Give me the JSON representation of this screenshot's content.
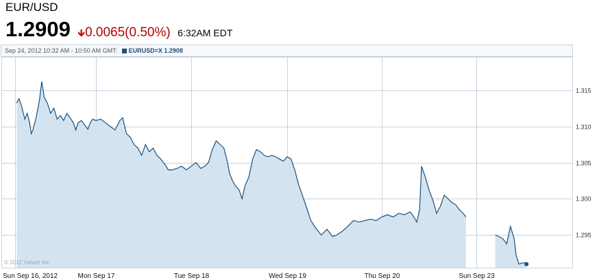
{
  "quote": {
    "symbol": "EUR/USD",
    "price": "1.2909",
    "arrow_icon": "down-arrow-icon",
    "change": "0.0065(0.50%)",
    "time": "6:32AM EDT"
  },
  "chart_header": {
    "range": "Sep 24, 2012 10:32 AM - 10:50 AM GMT:",
    "legend": "EURUSD=X 1.2908"
  },
  "copyright": "© 2012 Yahoo! Inc.",
  "colors": {
    "line": "#1f4e79",
    "fill": "#d3e4f0",
    "grid": "#c6d2de",
    "down": "#cc0000"
  },
  "chart_data": {
    "type": "area",
    "title": "",
    "xlabel": "",
    "ylabel": "",
    "ylim": [
      1.2905,
      1.3195
    ],
    "y_ticks": [
      1.295,
      1.3,
      1.305,
      1.31,
      1.315
    ],
    "y_tick_labels": [
      "1.295",
      "1.300",
      "1.305",
      "1.310",
      "1.315"
    ],
    "x_ticks": [
      0,
      1,
      2,
      3,
      4,
      5
    ],
    "x_tick_labels": [
      "Sun Sep 16, 2012",
      "Mon Sep 17",
      "Tue Sep 18",
      "Wed Sep 19",
      "Thu Sep 20",
      "Sun Sep 23"
    ],
    "grid": true,
    "legend": "top-left",
    "series": [
      {
        "name": "EURUSD=X",
        "segments": [
          [
            [
              0.02,
              1.3132
            ],
            [
              0.05,
              1.3138
            ],
            [
              0.08,
              1.3128
            ],
            [
              0.12,
              1.311
            ],
            [
              0.15,
              1.3118
            ],
            [
              0.18,
              1.3105
            ],
            [
              0.2,
              1.309
            ],
            [
              0.22,
              1.3095
            ],
            [
              0.26,
              1.3112
            ],
            [
              0.3,
              1.3135
            ],
            [
              0.33,
              1.3162
            ],
            [
              0.36,
              1.314
            ],
            [
              0.4,
              1.3132
            ],
            [
              0.44,
              1.3118
            ],
            [
              0.48,
              1.3125
            ],
            [
              0.52,
              1.311
            ],
            [
              0.56,
              1.3115
            ],
            [
              0.6,
              1.3108
            ],
            [
              0.64,
              1.3118
            ],
            [
              0.68,
              1.3112
            ],
            [
              0.72,
              1.3105
            ],
            [
              0.75,
              1.3095
            ],
            [
              0.78,
              1.3105
            ],
            [
              0.82,
              1.3108
            ],
            [
              0.86,
              1.3102
            ],
            [
              0.9,
              1.3096
            ],
            [
              0.93,
              1.3105
            ],
            [
              0.96,
              1.311
            ],
            [
              1.0,
              1.3108
            ],
            [
              1.05,
              1.311
            ],
            [
              1.1,
              1.3105
            ],
            [
              1.15,
              1.31
            ],
            [
              1.2,
              1.3095
            ],
            [
              1.25,
              1.3108
            ],
            [
              1.28,
              1.3112
            ],
            [
              1.32,
              1.309
            ],
            [
              1.36,
              1.3085
            ],
            [
              1.4,
              1.3075
            ],
            [
              1.44,
              1.307
            ],
            [
              1.48,
              1.306
            ],
            [
              1.52,
              1.3075
            ],
            [
              1.56,
              1.3065
            ],
            [
              1.6,
              1.307
            ],
            [
              1.64,
              1.306
            ],
            [
              1.68,
              1.3055
            ],
            [
              1.72,
              1.3048
            ],
            [
              1.76,
              1.304
            ],
            [
              1.8,
              1.304
            ],
            [
              1.85,
              1.3042
            ],
            [
              1.9,
              1.3045
            ],
            [
              1.95,
              1.304
            ],
            [
              2.0,
              1.3045
            ],
            [
              2.05,
              1.305
            ],
            [
              2.1,
              1.3042
            ],
            [
              2.14,
              1.3045
            ],
            [
              2.18,
              1.305
            ],
            [
              2.22,
              1.3068
            ],
            [
              2.26,
              1.308
            ],
            [
              2.3,
              1.3075
            ],
            [
              2.34,
              1.307
            ],
            [
              2.37,
              1.3055
            ],
            [
              2.4,
              1.3035
            ],
            [
              2.43,
              1.3025
            ],
            [
              2.46,
              1.3018
            ],
            [
              2.5,
              1.3012
            ],
            [
              2.53,
              1.3
            ],
            [
              2.56,
              1.3018
            ],
            [
              2.6,
              1.303
            ],
            [
              2.64,
              1.3055
            ],
            [
              2.68,
              1.3068
            ],
            [
              2.72,
              1.3065
            ],
            [
              2.76,
              1.306
            ],
            [
              2.8,
              1.3058
            ],
            [
              2.84,
              1.306
            ],
            [
              2.88,
              1.3058
            ],
            [
              2.92,
              1.3055
            ],
            [
              2.96,
              1.3052
            ],
            [
              3.0,
              1.3058
            ],
            [
              3.04,
              1.3055
            ],
            [
              3.08,
              1.304
            ],
            [
              3.12,
              1.302
            ],
            [
              3.16,
              1.3005
            ],
            [
              3.2,
              1.299
            ],
            [
              3.25,
              1.297
            ],
            [
              3.3,
              1.296
            ],
            [
              3.36,
              1.295
            ],
            [
              3.42,
              1.2958
            ],
            [
              3.48,
              1.2948
            ],
            [
              3.52,
              1.295
            ],
            [
              3.58,
              1.2955
            ],
            [
              3.64,
              1.2962
            ],
            [
              3.7,
              1.297
            ],
            [
              3.76,
              1.2968
            ],
            [
              3.82,
              1.297
            ],
            [
              3.88,
              1.2972
            ],
            [
              3.94,
              1.297
            ],
            [
              4.0,
              1.2975
            ],
            [
              4.06,
              1.2978
            ],
            [
              4.12,
              1.2975
            ],
            [
              4.18,
              1.298
            ],
            [
              4.24,
              1.2978
            ],
            [
              4.3,
              1.2982
            ],
            [
              4.34,
              1.2975
            ],
            [
              4.37,
              1.2968
            ],
            [
              4.4,
              1.2985
            ],
            [
              4.42,
              1.3045
            ],
            [
              4.46,
              1.303
            ],
            [
              4.5,
              1.3012
            ],
            [
              4.54,
              1.2998
            ],
            [
              4.58,
              1.298
            ],
            [
              4.62,
              1.299
            ],
            [
              4.66,
              1.3005
            ],
            [
              4.7,
              1.3
            ],
            [
              4.74,
              1.2995
            ],
            [
              4.78,
              1.2992
            ],
            [
              4.82,
              1.2985
            ],
            [
              4.86,
              1.298
            ],
            [
              4.89,
              1.2975
            ]
          ],
          [
            [
              5.2,
              1.295
            ],
            [
              5.24,
              1.2948
            ],
            [
              5.28,
              1.2945
            ],
            [
              5.32,
              1.2938
            ],
            [
              5.36,
              1.2962
            ],
            [
              5.4,
              1.2945
            ],
            [
              5.42,
              1.2922
            ],
            [
              5.45,
              1.291
            ],
            [
              5.5,
              1.2912
            ],
            [
              5.53,
              1.291
            ]
          ]
        ]
      }
    ]
  }
}
